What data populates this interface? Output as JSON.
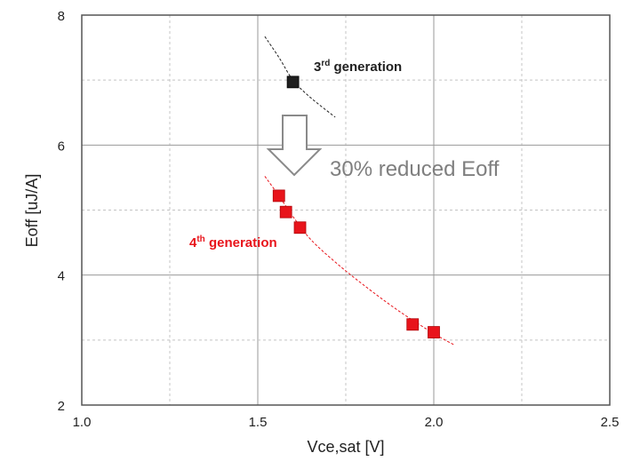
{
  "chart_data": {
    "type": "scatter",
    "title": "",
    "xlabel": "Vce,sat [V]",
    "ylabel": "Eoff [uJ/A]",
    "xlim": [
      1.0,
      2.5
    ],
    "ylim": [
      2,
      8
    ],
    "xticks": [
      1.0,
      1.5,
      2.0,
      2.5
    ],
    "xtick_labels": [
      "1.0",
      "1.5",
      "2.0",
      "2.5"
    ],
    "yticks": [
      2,
      4,
      6,
      8
    ],
    "ytick_labels": [
      "2",
      "4",
      "6",
      "8"
    ],
    "grid": true,
    "series": [
      {
        "name": "3rd generation",
        "color": "#1f1f1f",
        "points": [
          {
            "x": 1.6,
            "y": 6.97
          }
        ],
        "trend": [
          [
            1.52,
            7.67
          ],
          [
            1.56,
            7.35
          ],
          [
            1.6,
            7.0
          ],
          [
            1.65,
            6.73
          ],
          [
            1.72,
            6.43
          ]
        ]
      },
      {
        "name": "4th generation",
        "color": "#e8141b",
        "points": [
          {
            "x": 1.56,
            "y": 5.22
          },
          {
            "x": 1.58,
            "y": 4.97
          },
          {
            "x": 1.62,
            "y": 4.73
          },
          {
            "x": 1.94,
            "y": 3.24
          },
          {
            "x": 2.0,
            "y": 3.12
          }
        ],
        "trend": [
          [
            1.52,
            5.52
          ],
          [
            1.56,
            5.22
          ],
          [
            1.6,
            4.9
          ],
          [
            1.65,
            4.55
          ],
          [
            1.72,
            4.2
          ],
          [
            1.8,
            3.85
          ],
          [
            1.9,
            3.45
          ],
          [
            2.0,
            3.1
          ],
          [
            2.06,
            2.92
          ]
        ]
      }
    ],
    "annotations": {
      "gen3_label_main": "3",
      "gen3_label_sup": "rd",
      "gen3_label_rest": " generation",
      "gen4_label_main": "4",
      "gen4_label_sup": "th",
      "gen4_label_rest": " generation",
      "reduction": "30% reduced Eoff",
      "gen3_color": "#1f1f1f",
      "gen4_color": "#e8141b",
      "reduction_color": "#7f7f7f"
    }
  }
}
